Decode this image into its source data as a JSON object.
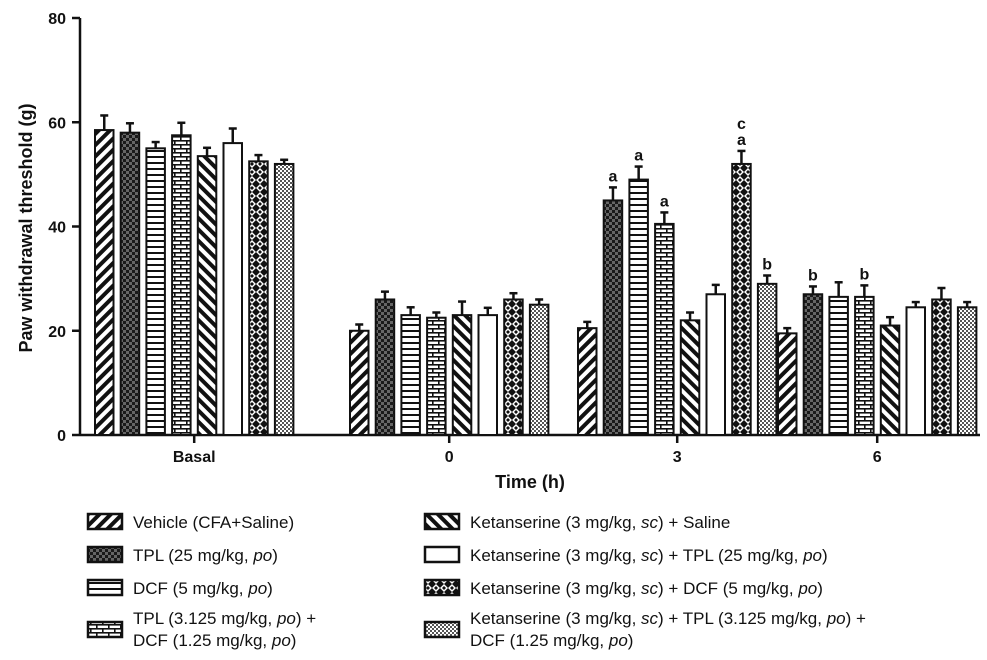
{
  "chart_data": {
    "type": "bar",
    "title": "",
    "xlabel": "Time (h)",
    "ylabel": "Paw withdrawal threshold (g)",
    "ylim": [
      0,
      80
    ],
    "yticks": [
      "0",
      "20",
      "40",
      "60",
      "80"
    ],
    "categories": [
      "Basal",
      "0",
      "3",
      "6"
    ],
    "legend_placement": "bottom",
    "grid": false,
    "series": [
      {
        "legend_parts": [
          {
            "t": "Vehicle (CFA+Saline)",
            "i": false
          }
        ],
        "pattern": "diag-right",
        "values": [
          58.5,
          20,
          20.5,
          19.5
        ],
        "errors": [
          2.8,
          1.2,
          1.2,
          1.0
        ],
        "labels": [
          "",
          "",
          "",
          ""
        ]
      },
      {
        "legend_parts": [
          {
            "t": "TPL (25 mg/kg, ",
            "i": false
          },
          {
            "t": "po",
            "i": true
          },
          {
            "t": ")",
            "i": false
          }
        ],
        "pattern": "checker",
        "values": [
          58,
          26,
          45,
          27
        ],
        "errors": [
          1.8,
          1.5,
          2.5,
          1.5
        ],
        "labels": [
          "",
          "",
          "a",
          "b"
        ]
      },
      {
        "legend_parts": [
          {
            "t": "DCF (5 mg/kg, ",
            "i": false
          },
          {
            "t": "po",
            "i": true
          },
          {
            "t": ")",
            "i": false
          }
        ],
        "pattern": "horizontal",
        "values": [
          55,
          23,
          49,
          26.5
        ],
        "errors": [
          1.2,
          1.5,
          2.5,
          2.8
        ],
        "labels": [
          "",
          "",
          "a",
          ""
        ]
      },
      {
        "legend_parts": [
          {
            "t": "TPL (3.125 mg/kg, ",
            "i": false
          },
          {
            "t": "po",
            "i": true
          },
          {
            "t": ") +",
            "i": false
          }
        ],
        "legend_line2": [
          {
            "t": "DCF (1.25 mg/kg, ",
            "i": false
          },
          {
            "t": "po",
            "i": true
          },
          {
            "t": ")",
            "i": false
          }
        ],
        "pattern": "brick",
        "values": [
          57.5,
          22.5,
          40.5,
          26.5
        ],
        "errors": [
          2.4,
          1.0,
          2.2,
          2.2
        ],
        "labels": [
          "",
          "",
          "a",
          "b"
        ]
      },
      {
        "legend_parts": [
          {
            "t": "Ketanserine (3 mg/kg, ",
            "i": false
          },
          {
            "t": "sc",
            "i": true
          },
          {
            "t": ") + Saline",
            "i": false
          }
        ],
        "pattern": "diag-left",
        "values": [
          53.5,
          23,
          22,
          21
        ],
        "errors": [
          1.6,
          2.6,
          1.5,
          1.6
        ],
        "labels": [
          "",
          "",
          "",
          ""
        ]
      },
      {
        "legend_parts": [
          {
            "t": "Ketanserine (3 mg/kg, ",
            "i": false
          },
          {
            "t": "sc",
            "i": true
          },
          {
            "t": ") + TPL (25 mg/kg, ",
            "i": false
          },
          {
            "t": "po",
            "i": true
          },
          {
            "t": ")",
            "i": false
          }
        ],
        "pattern": "white",
        "values": [
          56,
          23,
          27,
          24.5
        ],
        "errors": [
          2.8,
          1.4,
          1.8,
          1.0
        ],
        "labels": [
          "",
          "",
          "",
          ""
        ]
      },
      {
        "legend_parts": [
          {
            "t": "Ketanserine (3 mg/kg, ",
            "i": false
          },
          {
            "t": "sc",
            "i": true
          },
          {
            "t": ") + DCF (5 mg/kg, ",
            "i": false
          },
          {
            "t": "po",
            "i": true
          },
          {
            "t": ")",
            "i": false
          }
        ],
        "pattern": "crosshatch",
        "values": [
          52.5,
          26,
          52,
          26
        ],
        "errors": [
          1.2,
          1.2,
          2.5,
          2.2
        ],
        "labels": [
          "",
          "",
          "c|a",
          ""
        ]
      },
      {
        "legend_parts": [
          {
            "t": "Ketanserine (3 mg/kg, ",
            "i": false
          },
          {
            "t": "sc",
            "i": true
          },
          {
            "t": ") + TPL (3.125 mg/kg, ",
            "i": false
          },
          {
            "t": "po",
            "i": true
          },
          {
            "t": ") +",
            "i": false
          }
        ],
        "legend_line2": [
          {
            "t": "DCF (1.25 mg/kg, ",
            "i": false
          },
          {
            "t": "po",
            "i": true
          },
          {
            "t": ")",
            "i": false
          }
        ],
        "pattern": "dots",
        "values": [
          52,
          25,
          29,
          24.5
        ],
        "errors": [
          0.8,
          1.0,
          1.6,
          1.0
        ],
        "labels": [
          "",
          "",
          "b",
          ""
        ]
      }
    ]
  }
}
